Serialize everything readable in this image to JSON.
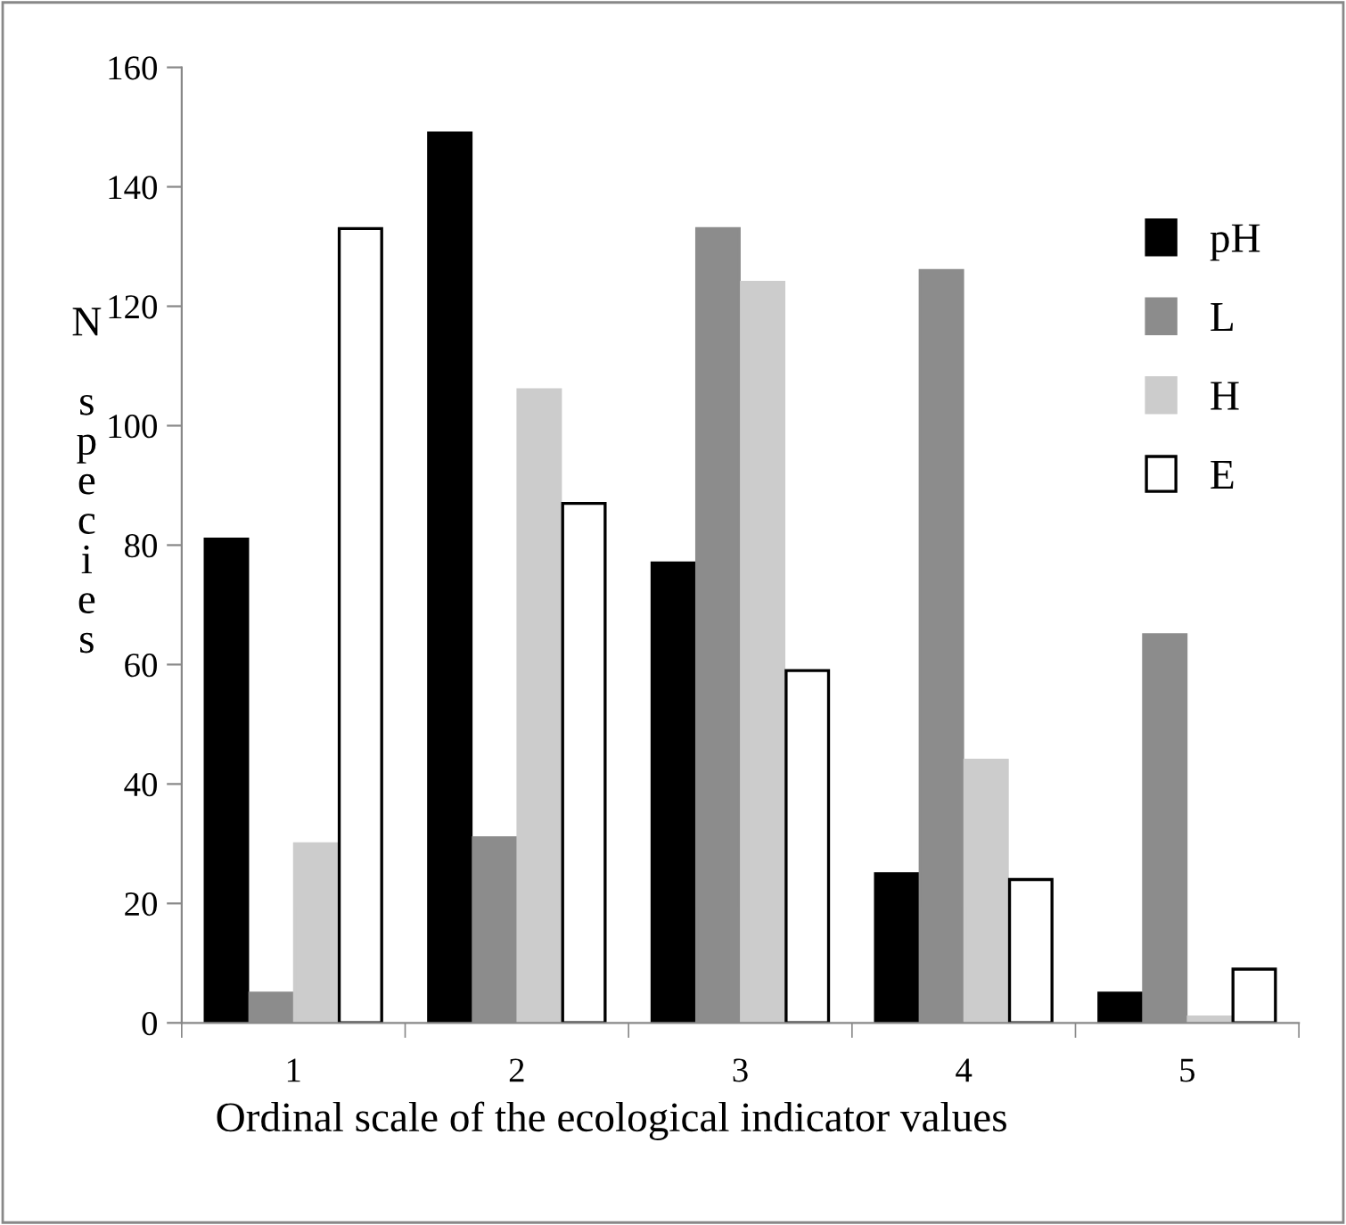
{
  "chart_data": {
    "type": "bar",
    "ylabel": "N species",
    "xlabel": "Ordinal scale of the ecological indicator values",
    "categories": [
      "1",
      "2",
      "3",
      "4",
      "5"
    ],
    "series": [
      {
        "name": "pH",
        "color": "#000000",
        "values": [
          81,
          149,
          77,
          25,
          5
        ]
      },
      {
        "name": "L",
        "color": "#8c8c8c",
        "values": [
          5,
          31,
          133,
          126,
          65
        ]
      },
      {
        "name": "H",
        "color": "#cccccc",
        "values": [
          30,
          106,
          124,
          44,
          1
        ]
      },
      {
        "name": "E",
        "color": "#ffffff",
        "values": [
          133,
          87,
          59,
          24,
          9
        ]
      }
    ],
    "ylim": [
      0,
      160
    ],
    "yticks": [
      0,
      20,
      40,
      60,
      80,
      100,
      120,
      140,
      160
    ],
    "grid": false,
    "legend": "right"
  }
}
